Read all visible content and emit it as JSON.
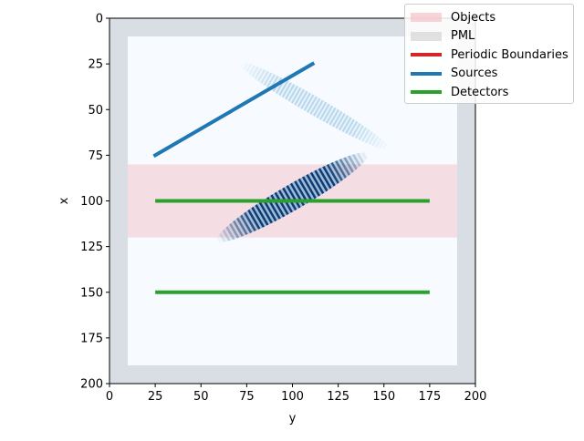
{
  "chart_data": {
    "type": "heatmap",
    "title": "",
    "xlabel": "y",
    "ylabel": "x",
    "xlim": [
      0,
      200
    ],
    "ylim": [
      200,
      0
    ],
    "x_ticks": [
      0,
      25,
      50,
      75,
      100,
      125,
      150,
      175,
      200
    ],
    "y_ticks": [
      0,
      25,
      50,
      75,
      100,
      125,
      150,
      175,
      200
    ],
    "colormap": "Blues",
    "legend_position": "top-right",
    "legend": [
      {
        "label": "Objects",
        "color": "#f4c2c8"
      },
      {
        "label": "PML",
        "color": "#d4d4d4"
      },
      {
        "label": "Periodic Boundaries",
        "color": "#d62728"
      },
      {
        "label": "Sources",
        "color": "#1f77b4"
      },
      {
        "label": "Detectors",
        "color": "#2ca02c"
      }
    ],
    "pml": {
      "thickness": 10,
      "color": "#a9b1bb"
    },
    "objects": [
      {
        "label": "Objects",
        "x_range": [
          80,
          120
        ],
        "y_range": [
          10,
          190
        ]
      }
    ],
    "sources": [
      {
        "label": "Sources",
        "from": {
          "y": 25,
          "x": 75
        },
        "to": {
          "y": 111,
          "x": 25
        }
      }
    ],
    "detectors": [
      {
        "label": "Detectors",
        "y_range": [
          25,
          175
        ],
        "x": 100
      },
      {
        "label": "Detectors",
        "y_range": [
          25,
          175
        ],
        "x": 150
      }
    ],
    "field": [
      {
        "center": {
          "y": 112,
          "x": 48
        },
        "length": 95,
        "width": 10,
        "angle_deg": 30,
        "intensity": 0.45
      },
      {
        "center": {
          "y": 100,
          "x": 98
        },
        "length": 95,
        "width": 14,
        "angle_deg": -30,
        "intensity": 0.95
      }
    ]
  }
}
